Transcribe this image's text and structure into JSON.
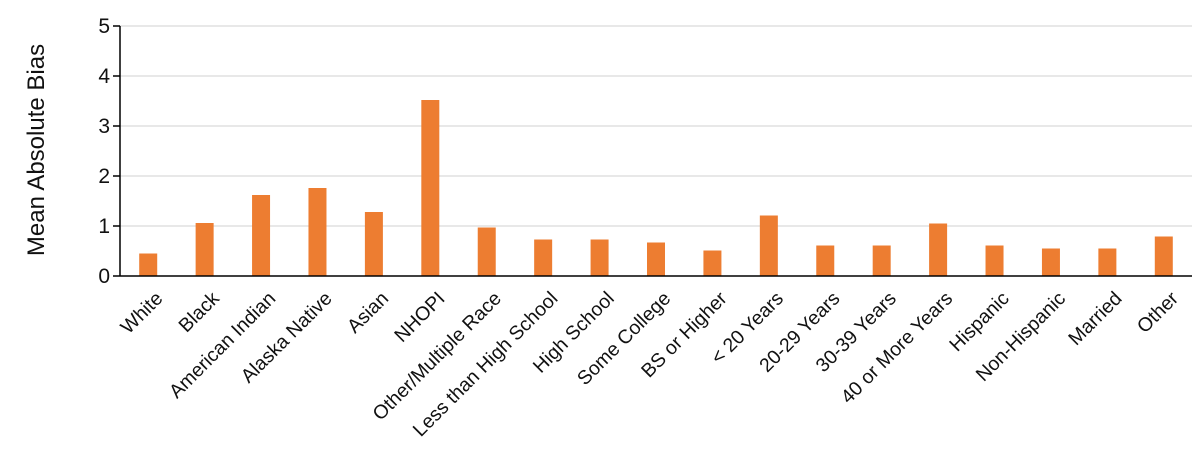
{
  "chart_data": {
    "type": "bar",
    "title": "",
    "xlabel": "",
    "ylabel": "Mean Absolute Bias",
    "ylim": [
      0,
      5
    ],
    "yticks": [
      "0",
      "1",
      "2",
      "3",
      "4",
      "5"
    ],
    "grid": true,
    "legend": "none",
    "bar_color": "#ED7D31",
    "categories": [
      "White",
      "Black",
      "American Indian",
      "Alaska Native",
      "Asian",
      "NHOPI",
      "Other/Multiple Race",
      "Less than High School",
      "High School",
      "Some College",
      "BS or Higher",
      "< 20 Years",
      "20-29 Years",
      "30-39 Years",
      "40 or More Years",
      "Hispanic",
      "Non-Hispanic",
      "Married",
      "Other"
    ],
    "values": [
      0.45,
      1.06,
      1.62,
      1.76,
      1.28,
      3.52,
      0.97,
      0.73,
      0.73,
      0.67,
      0.51,
      1.21,
      0.61,
      0.61,
      1.05,
      0.61,
      0.55,
      0.55,
      0.79
    ]
  }
}
